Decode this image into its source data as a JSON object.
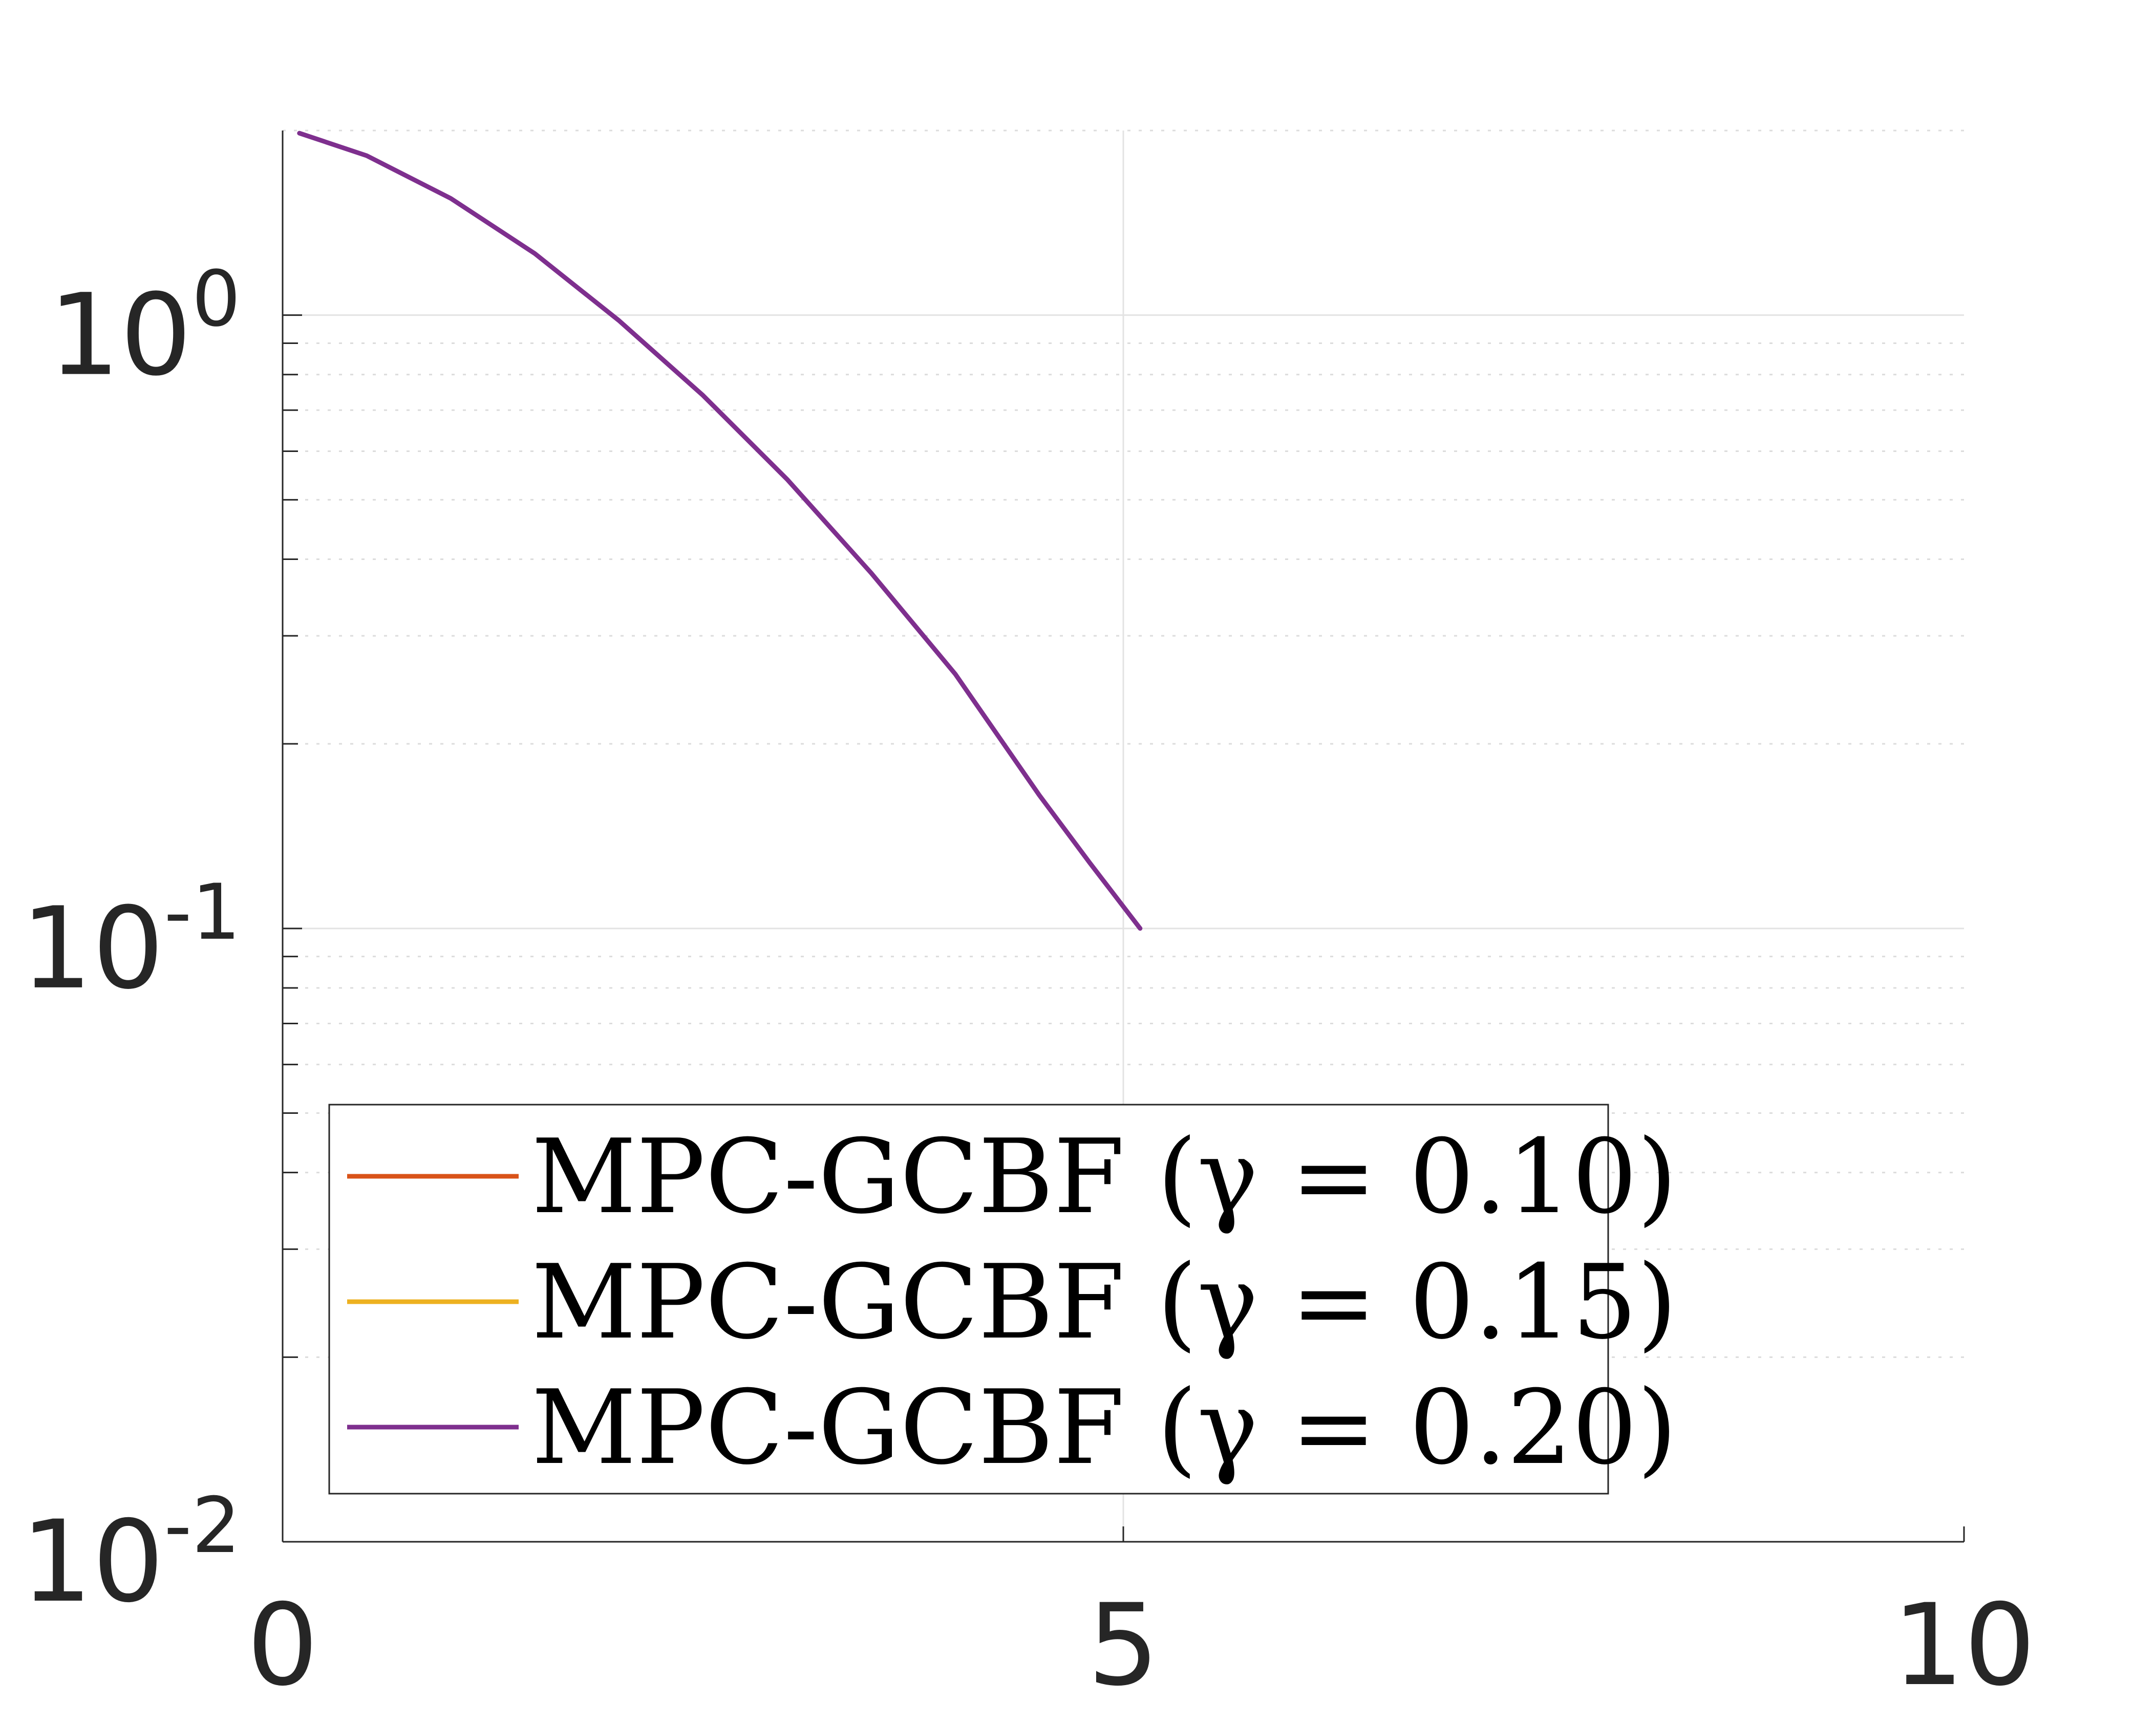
{
  "chart_data": {
    "type": "line",
    "title": "",
    "xlabel": "",
    "ylabel": "",
    "xlim": [
      0,
      10
    ],
    "ylim": [
      0.01,
      2
    ],
    "y_scale": "log",
    "grid": true,
    "minor_grid": true,
    "x_ticks": [
      {
        "value": 0,
        "label": "0"
      },
      {
        "value": 5,
        "label": "5"
      },
      {
        "value": 10,
        "label": "10"
      }
    ],
    "y_ticks": [
      {
        "value": 0.01,
        "base": "10",
        "exp": "-2"
      },
      {
        "value": 0.1,
        "base": "10",
        "exp": "-1"
      },
      {
        "value": 1,
        "base": "10",
        "exp": "0"
      }
    ],
    "legend_position": "bottom-left",
    "series": [
      {
        "name": "MPC-GCBF (γ = 0.10)",
        "color": "#D95319",
        "x": [],
        "y": []
      },
      {
        "name": "MPC-GCBF (γ = 0.15)",
        "color": "#EDB120",
        "x": [],
        "y": []
      },
      {
        "name": "MPC-GCBF (γ = 0.20)",
        "color": "#7E2F8E",
        "x": [
          0.1,
          0.5,
          1.0,
          1.5,
          2.0,
          2.5,
          3.0,
          3.5,
          4.0,
          4.5,
          4.8,
          5.1
        ],
        "y": [
          1.98,
          1.82,
          1.55,
          1.26,
          0.98,
          0.74,
          0.54,
          0.38,
          0.26,
          0.165,
          0.128,
          0.1
        ]
      }
    ]
  }
}
